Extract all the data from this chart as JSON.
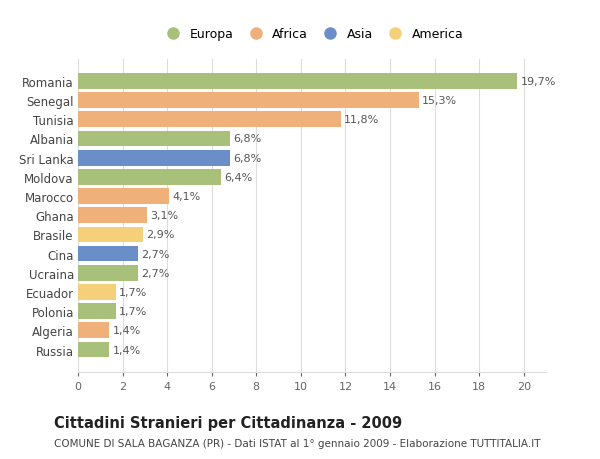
{
  "countries": [
    "Russia",
    "Algeria",
    "Polonia",
    "Ecuador",
    "Ucraina",
    "Cina",
    "Brasile",
    "Ghana",
    "Marocco",
    "Moldova",
    "Sri Lanka",
    "Albania",
    "Tunisia",
    "Senegal",
    "Romania"
  ],
  "values": [
    1.4,
    1.4,
    1.7,
    1.7,
    2.7,
    2.7,
    2.9,
    3.1,
    4.1,
    6.4,
    6.8,
    6.8,
    11.8,
    15.3,
    19.7
  ],
  "labels": [
    "1,4%",
    "1,4%",
    "1,7%",
    "1,7%",
    "2,7%",
    "2,7%",
    "2,9%",
    "3,1%",
    "4,1%",
    "6,4%",
    "6,8%",
    "6,8%",
    "11,8%",
    "15,3%",
    "19,7%"
  ],
  "continents": [
    "Europa",
    "Africa",
    "Europa",
    "America",
    "Europa",
    "Asia",
    "America",
    "Africa",
    "Africa",
    "Europa",
    "Asia",
    "Europa",
    "Africa",
    "Africa",
    "Europa"
  ],
  "continent_colors": {
    "Europa": "#a8c07a",
    "Africa": "#f0b07a",
    "Asia": "#6a8fc8",
    "America": "#f5d07a"
  },
  "legend_order": [
    "Europa",
    "Africa",
    "Asia",
    "America"
  ],
  "title": "Cittadini Stranieri per Cittadinanza - 2009",
  "subtitle": "COMUNE DI SALA BAGANZA (PR) - Dati ISTAT al 1° gennaio 2009 - Elaborazione TUTTITALIA.IT",
  "xlim": [
    0,
    21
  ],
  "xticks": [
    0,
    2,
    4,
    6,
    8,
    10,
    12,
    14,
    16,
    18,
    20
  ],
  "bg_color": "#ffffff",
  "grid_color": "#dddddd",
  "bar_height": 0.82,
  "label_fontsize": 8,
  "tick_fontsize": 8,
  "ytick_fontsize": 8.5,
  "title_fontsize": 10.5,
  "subtitle_fontsize": 7.5
}
